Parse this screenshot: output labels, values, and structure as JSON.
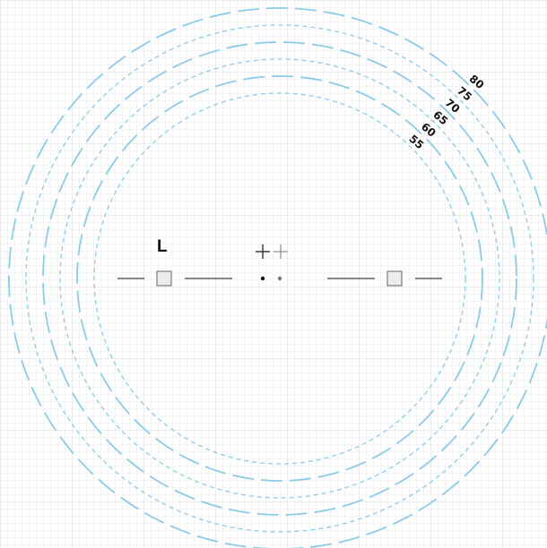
{
  "diagram": {
    "rings": [
      {
        "label": "55",
        "style": "dashed"
      },
      {
        "label": "60",
        "style": "long-dash"
      },
      {
        "label": "65",
        "style": "dashed"
      },
      {
        "label": "70",
        "style": "long-dash"
      },
      {
        "label": "75",
        "style": "dashed"
      },
      {
        "label": "80",
        "style": "long-dash"
      }
    ],
    "side_marker_label": "L",
    "colors": {
      "ring": "#8ccbe8",
      "grid": "#ebebeb",
      "grid_major": "#dedede",
      "ink": "#111111",
      "box_fill": "#ececec"
    },
    "icons": [
      "crosshair-plus-icon",
      "light-crosshair-plus-icon",
      "center-dot-icon",
      "fixation-dot-icon",
      "left-square-icon",
      "right-square-icon"
    ]
  }
}
